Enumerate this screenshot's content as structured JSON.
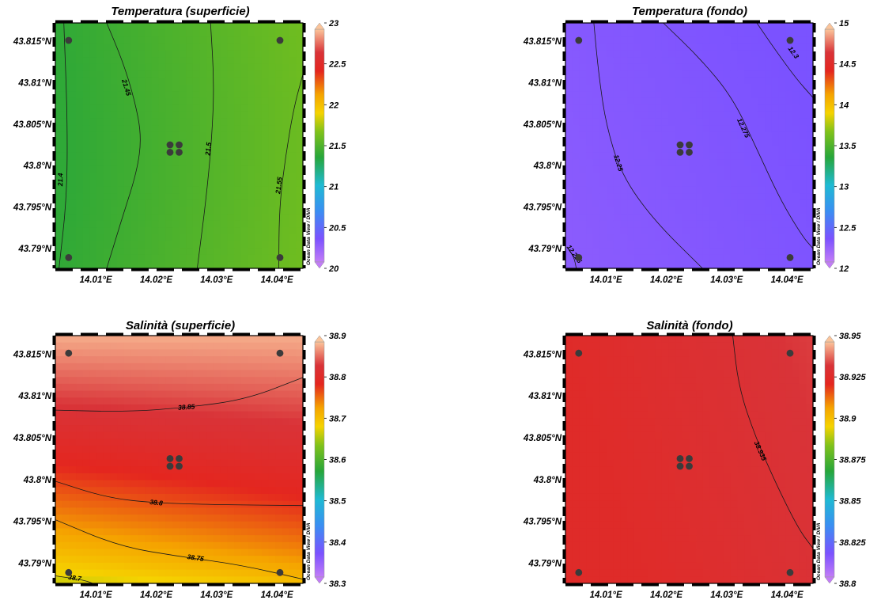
{
  "chart_data": [
    {
      "type": "heatmap",
      "title": "Temperatura (superficie)",
      "x_ticks": [
        "14.01°E",
        "14.02°E",
        "14.03°E",
        "14.04°E"
      ],
      "y_ticks": [
        "43.79°N",
        "43.795°N",
        "43.8°N",
        "43.805°N",
        "43.81°N",
        "43.815°N"
      ],
      "xlim": [
        14.0033,
        14.0443
      ],
      "ylim": [
        43.7876,
        43.8172
      ],
      "colorbar": {
        "min": 20,
        "max": 23,
        "ticks": [
          "20",
          "20.5",
          "21",
          "21.5",
          "22",
          "22.5",
          "23"
        ]
      },
      "stations": [
        {
          "lon": 14.0055,
          "lat": 43.8151
        },
        {
          "lon": 14.0405,
          "lat": 43.8151
        },
        {
          "lon": 14.0055,
          "lat": 43.7889
        },
        {
          "lon": 14.0405,
          "lat": 43.7889
        },
        {
          "lon": 14.0223,
          "lat": 43.8025
        },
        {
          "lon": 14.0238,
          "lat": 43.8025
        },
        {
          "lon": 14.0223,
          "lat": 43.8016
        },
        {
          "lon": 14.0238,
          "lat": 43.8016
        }
      ],
      "contours": [
        {
          "label": "21.4",
          "points": [
            [
              14.0047,
              43.8172
            ],
            [
              14.0053,
              43.8056
            ],
            [
              14.0052,
              43.796
            ],
            [
              14.0039,
              43.7876
            ]
          ],
          "label_at": [
            14.0042,
            43.7983
          ]
        },
        {
          "label": "21.45",
          "points": [
            [
              14.0118,
              43.8172
            ],
            [
              14.0144,
              43.8127
            ],
            [
              14.0164,
              43.808
            ],
            [
              14.0176,
              43.8035
            ],
            [
              14.0168,
              43.7992
            ],
            [
              14.0142,
              43.7933
            ],
            [
              14.0118,
              43.7876
            ]
          ],
          "label_at": [
            14.015,
            43.8094
          ]
        },
        {
          "label": "21.5",
          "points": [
            [
              14.029,
              43.8172
            ],
            [
              14.0296,
              43.81
            ],
            [
              14.0292,
              43.803
            ],
            [
              14.0282,
              43.7955
            ],
            [
              14.0268,
              43.7876
            ]
          ],
          "label_at": [
            14.0287,
            43.802
          ]
        },
        {
          "label": "21.55",
          "points": [
            [
              14.0443,
              43.811
            ],
            [
              14.0428,
              43.807
            ],
            [
              14.0414,
              43.801
            ],
            [
              14.0404,
              43.795
            ],
            [
              14.0403,
              43.7876
            ]
          ],
          "label_at": [
            14.0404,
            43.7976
          ]
        }
      ],
      "contour_values": [
        21.4,
        21.45,
        21.5,
        21.55
      ],
      "field": {
        "west": 21.38,
        "center": 21.5,
        "east": 21.62
      },
      "watermark": "Ocean Data View / DIVA"
    },
    {
      "type": "heatmap",
      "title": "Temperatura (fondo)",
      "x_ticks": [
        "14.01°E",
        "14.02°E",
        "14.03°E",
        "14.04°E"
      ],
      "y_ticks": [
        "43.79°N",
        "43.795°N",
        "43.8°N",
        "43.805°N",
        "43.81°N",
        "43.815°N"
      ],
      "xlim": [
        14.0033,
        14.0443
      ],
      "ylim": [
        43.7876,
        43.8172
      ],
      "colorbar": {
        "min": 12,
        "max": 15,
        "ticks": [
          "12",
          "12.5",
          "13",
          "13.5",
          "14",
          "14.5",
          "15"
        ]
      },
      "stations": [
        {
          "lon": 14.0055,
          "lat": 43.8151
        },
        {
          "lon": 14.0405,
          "lat": 43.8151
        },
        {
          "lon": 14.0055,
          "lat": 43.7889
        },
        {
          "lon": 14.0405,
          "lat": 43.7889
        },
        {
          "lon": 14.0223,
          "lat": 43.8025
        },
        {
          "lon": 14.0238,
          "lat": 43.8025
        },
        {
          "lon": 14.0223,
          "lat": 43.8016
        },
        {
          "lon": 14.0238,
          "lat": 43.8016
        }
      ],
      "contours": [
        {
          "label": "12.225",
          "points": [
            [
              14.0036,
              43.7901
            ],
            [
              14.0047,
              43.789
            ],
            [
              14.0051,
              43.7876
            ]
          ],
          "label_at": [
            14.0047,
            43.7893
          ]
        },
        {
          "label": "12.25",
          "points": [
            [
              14.008,
              43.8172
            ],
            [
              14.0088,
              43.811
            ],
            [
              14.01,
              43.805
            ],
            [
              14.0125,
              43.799
            ],
            [
              14.0178,
              43.7935
            ],
            [
              14.026,
              43.7876
            ]
          ],
          "label_at": [
            14.012,
            43.8003
          ]
        },
        {
          "label": "12.275",
          "points": [
            [
              14.0195,
              43.8172
            ],
            [
              14.0255,
              43.813
            ],
            [
              14.031,
              43.8082
            ],
            [
              14.035,
              43.802
            ],
            [
              14.0388,
              43.796
            ],
            [
              14.0425,
              43.7915
            ],
            [
              14.0443,
              43.79
            ]
          ],
          "label_at": [
            14.0327,
            43.8045
          ]
        },
        {
          "label": "12.3",
          "points": [
            [
              14.035,
              43.8172
            ],
            [
              14.038,
              43.814
            ],
            [
              14.0415,
              43.8105
            ],
            [
              14.0443,
              43.8082
            ]
          ],
          "label_at": [
            14.041,
            43.8136
          ]
        }
      ],
      "contour_values": [
        12.225,
        12.25,
        12.275,
        12.3
      ],
      "field": {
        "west": 12.23,
        "center": 12.27,
        "east": 12.31
      },
      "watermark": "Ocean Data View / DIVA"
    },
    {
      "type": "heatmap",
      "title": "Salinità (superficie)",
      "x_ticks": [
        "14.01°E",
        "14.02°E",
        "14.03°E",
        "14.04°E"
      ],
      "y_ticks": [
        "43.79°N",
        "43.795°N",
        "43.8°N",
        "43.805°N",
        "43.81°N",
        "43.815°N"
      ],
      "xlim": [
        14.0033,
        14.0443
      ],
      "ylim": [
        43.7876,
        43.8172
      ],
      "colorbar": {
        "min": 38.3,
        "max": 38.9,
        "ticks": [
          "38.3",
          "38.4",
          "38.5",
          "38.6",
          "38.7",
          "38.8",
          "38.9"
        ]
      },
      "stations": [
        {
          "lon": 14.0055,
          "lat": 43.8151
        },
        {
          "lon": 14.0405,
          "lat": 43.8151
        },
        {
          "lon": 14.0055,
          "lat": 43.7889
        },
        {
          "lon": 14.0405,
          "lat": 43.7889
        },
        {
          "lon": 14.0223,
          "lat": 43.8025
        },
        {
          "lon": 14.0238,
          "lat": 43.8025
        },
        {
          "lon": 14.0223,
          "lat": 43.8016
        },
        {
          "lon": 14.0238,
          "lat": 43.8016
        }
      ],
      "contours": [
        {
          "label": "38.85",
          "points": [
            [
              14.0033,
              43.8083
            ],
            [
              14.015,
              43.8081
            ],
            [
              14.025,
              43.8086
            ],
            [
              14.035,
              43.8096
            ],
            [
              14.0443,
              43.8122
            ]
          ],
          "label_at": [
            14.025,
            43.8086
          ]
        },
        {
          "label": "38.8",
          "points": [
            [
              14.0033,
              43.7998
            ],
            [
              14.012,
              43.7978
            ],
            [
              14.02,
              43.7972
            ],
            [
              14.03,
              43.797
            ],
            [
              14.0443,
              43.7969
            ]
          ],
          "label_at": [
            14.02,
            43.7972
          ]
        },
        {
          "label": "38.75",
          "points": [
            [
              14.0033,
              43.7952
            ],
            [
              14.014,
              43.792
            ],
            [
              14.024,
              43.7908
            ],
            [
              14.034,
              43.7898
            ],
            [
              14.0443,
              43.7881
            ]
          ],
          "label_at": [
            14.0265,
            43.7906
          ]
        },
        {
          "label": "38.7",
          "points": [
            [
              14.0033,
              43.7885
            ],
            [
              14.008,
              43.788
            ],
            [
              14.0095,
              43.7876
            ]
          ],
          "label_at": [
            14.0065,
            43.7882
          ]
        }
      ],
      "contour_values": [
        38.7,
        38.75,
        38.8,
        38.85
      ],
      "field": {
        "south_west": 38.66,
        "south_east": 38.73,
        "middle": 38.81,
        "north": 38.89
      },
      "watermark": "Ocean Data View / DIVA"
    },
    {
      "type": "heatmap",
      "title": "Salinità (fondo)",
      "x_ticks": [
        "14.01°E",
        "14.02°E",
        "14.03°E",
        "14.04°E"
      ],
      "y_ticks": [
        "43.79°N",
        "43.795°N",
        "43.8°N",
        "43.805°N",
        "43.81°N",
        "43.815°N"
      ],
      "xlim": [
        14.0033,
        14.0443
      ],
      "ylim": [
        43.7876,
        43.8172
      ],
      "colorbar": {
        "min": 38.8,
        "max": 38.95,
        "ticks": [
          "38.8",
          "38.825",
          "38.85",
          "38.875",
          "38.9",
          "38.925",
          "38.95"
        ]
      },
      "stations": [
        {
          "lon": 14.0055,
          "lat": 43.8151
        },
        {
          "lon": 14.0405,
          "lat": 43.8151
        },
        {
          "lon": 14.0055,
          "lat": 43.7889
        },
        {
          "lon": 14.0405,
          "lat": 43.7889
        },
        {
          "lon": 14.0223,
          "lat": 43.8025
        },
        {
          "lon": 14.0238,
          "lat": 43.8025
        },
        {
          "lon": 14.0223,
          "lat": 43.8016
        },
        {
          "lon": 14.0238,
          "lat": 43.8016
        }
      ],
      "contours": [
        {
          "label": "38.935",
          "points": [
            [
              14.031,
              43.8172
            ],
            [
              14.032,
              43.811
            ],
            [
              14.0348,
              43.805
            ],
            [
              14.0385,
              43.799
            ],
            [
              14.042,
              43.794
            ],
            [
              14.0443,
              43.7918
            ]
          ],
          "label_at": [
            14.0355,
            43.8034
          ]
        }
      ],
      "contour_values": [
        38.935
      ],
      "field": {
        "west": 38.928,
        "east": 38.937
      },
      "watermark": "Ocean Data View / DIVA"
    }
  ]
}
